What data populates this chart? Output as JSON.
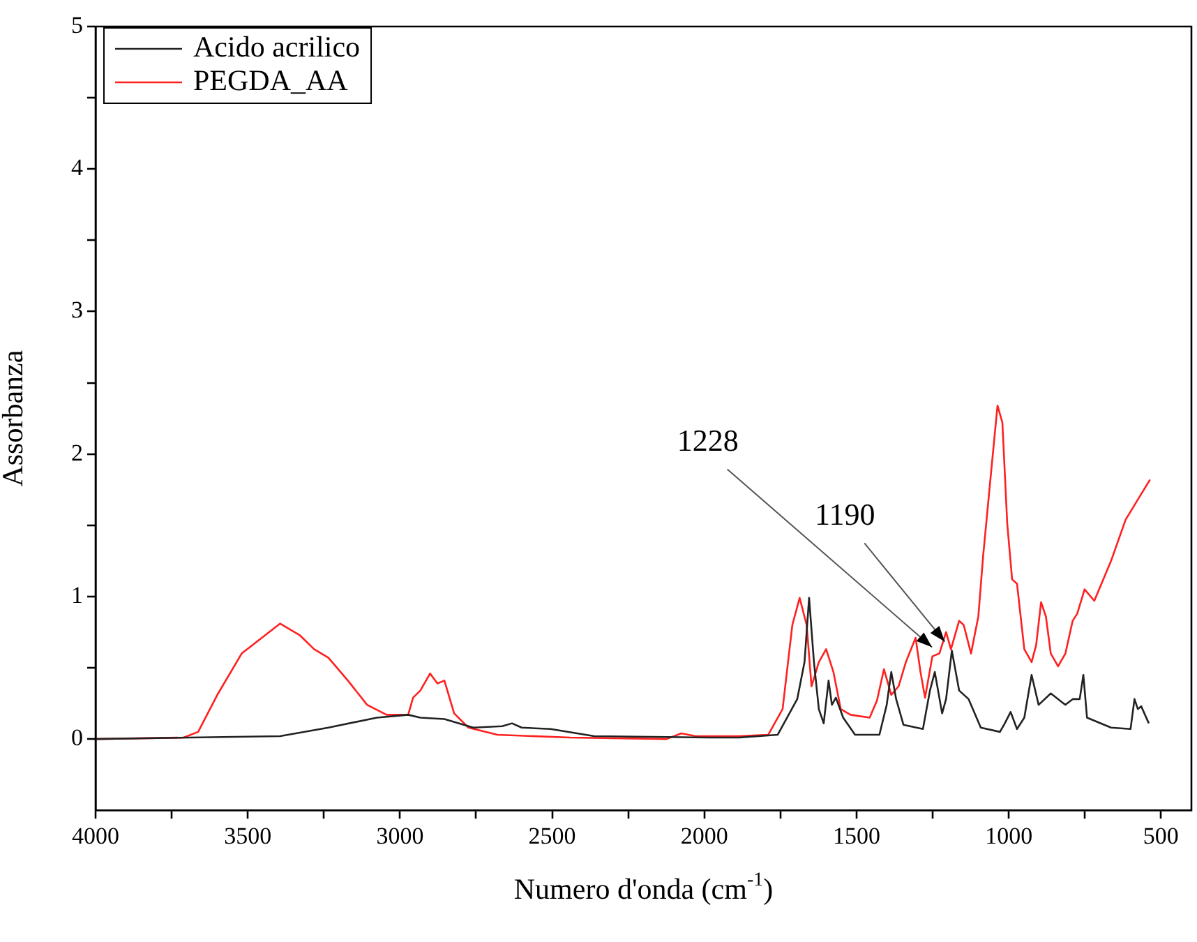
{
  "chart_data": {
    "type": "line",
    "xlabel": "Numero d'onda (cm$^{-1}$)",
    "ylabel": "Assorbanza",
    "xlim": [
      4000,
      400
    ],
    "ylim": [
      -0.5,
      5
    ],
    "xticks": [
      4000,
      {
        "value": 3750,
        "label": null
      },
      3500,
      {
        "value": 3250,
        "label": null
      },
      3000,
      {
        "value": 2750,
        "label": null
      },
      2500,
      {
        "value": 2250,
        "label": null
      },
      2000,
      {
        "value": 1750,
        "label": null
      },
      1500,
      {
        "value": 1250,
        "label": null
      },
      1000,
      {
        "value": 750,
        "label": null
      },
      500
    ],
    "yticks": [
      0,
      {
        "value": 0.5,
        "label": null
      },
      1,
      {
        "value": 1.5,
        "label": null
      },
      2,
      {
        "value": 2.5,
        "label": null
      },
      3,
      {
        "value": 3.5,
        "label": null
      },
      4,
      {
        "value": 4.5,
        "label": null
      },
      5
    ],
    "grid": false,
    "legend": "top left",
    "marker": "none",
    "line_style": "solid",
    "annotations": [
      {
        "text": "1228",
        "x": 1228,
        "y": 0.6
      },
      {
        "text": "1190",
        "x": 1190,
        "y": 0.63
      }
    ],
    "series": [
      {
        "name": "Acido acrilico",
        "color": "#222222",
        "x": [
          4000,
          3394,
          3235,
          3076,
          2973,
          2933,
          2854,
          2759,
          2664,
          2632,
          2600,
          2505,
          2362,
          1967,
          1886,
          1759,
          1695,
          1671,
          1656,
          1640,
          1624,
          1608,
          1592,
          1581,
          1568,
          1544,
          1505,
          1425,
          1401,
          1386,
          1370,
          1346,
          1282,
          1259,
          1243,
          1219,
          1206,
          1187,
          1163,
          1132,
          1092,
          1029,
          1013,
          994,
          973,
          949,
          925,
          902,
          862,
          814,
          790,
          767,
          755,
          743,
          664,
          600,
          587,
          576,
          565,
          540
        ],
        "values": [
          0,
          0.02,
          0.08,
          0.15,
          0.17,
          0.15,
          0.14,
          0.08,
          0.09,
          0.11,
          0.08,
          0.07,
          0.02,
          0.01,
          0.01,
          0.03,
          0.28,
          0.54,
          0.99,
          0.54,
          0.21,
          0.11,
          0.41,
          0.24,
          0.29,
          0.15,
          0.03,
          0.03,
          0.24,
          0.47,
          0.28,
          0.1,
          0.07,
          0.34,
          0.47,
          0.18,
          0.28,
          0.62,
          0.34,
          0.28,
          0.08,
          0.05,
          0.11,
          0.19,
          0.07,
          0.15,
          0.45,
          0.24,
          0.32,
          0.24,
          0.28,
          0.28,
          0.45,
          0.15,
          0.08,
          0.07,
          0.28,
          0.21,
          0.23,
          0.11
        ]
      },
      {
        "name": "PEGDA_AA",
        "color": "#ff2020",
        "x": [
          4000,
          3711,
          3663,
          3600,
          3520,
          3394,
          3330,
          3282,
          3235,
          3171,
          3108,
          3044,
          2973,
          2957,
          2933,
          2901,
          2877,
          2854,
          2822,
          2775,
          2680,
          2441,
          2124,
          2076,
          2029,
          1886,
          1790,
          1743,
          1711,
          1687,
          1664,
          1648,
          1624,
          1600,
          1576,
          1552,
          1520,
          1457,
          1433,
          1410,
          1386,
          1362,
          1338,
          1306,
          1290,
          1275,
          1251,
          1228,
          1206,
          1190,
          1163,
          1148,
          1124,
          1100,
          1084,
          1060,
          1037,
          1021,
          1005,
          989,
          973,
          949,
          925,
          910,
          894,
          878,
          862,
          838,
          814,
          790,
          775,
          751,
          719,
          664,
          616,
          536
        ],
        "values": [
          0,
          0.01,
          0.05,
          0.31,
          0.6,
          0.81,
          0.73,
          0.63,
          0.57,
          0.41,
          0.24,
          0.17,
          0.17,
          0.29,
          0.34,
          0.46,
          0.39,
          0.41,
          0.18,
          0.08,
          0.03,
          0.01,
          0,
          0.04,
          0.02,
          0.02,
          0.03,
          0.21,
          0.8,
          0.99,
          0.8,
          0.37,
          0.54,
          0.63,
          0.47,
          0.21,
          0.17,
          0.15,
          0.27,
          0.49,
          0.31,
          0.37,
          0.54,
          0.71,
          0.47,
          0.29,
          0.58,
          0.6,
          0.75,
          0.63,
          0.83,
          0.8,
          0.6,
          0.86,
          1.29,
          1.83,
          2.34,
          2.22,
          1.51,
          1.12,
          1.09,
          0.63,
          0.54,
          0.66,
          0.96,
          0.86,
          0.6,
          0.51,
          0.6,
          0.83,
          0.88,
          1.05,
          0.97,
          1.25,
          1.54,
          1.82
        ]
      }
    ]
  }
}
